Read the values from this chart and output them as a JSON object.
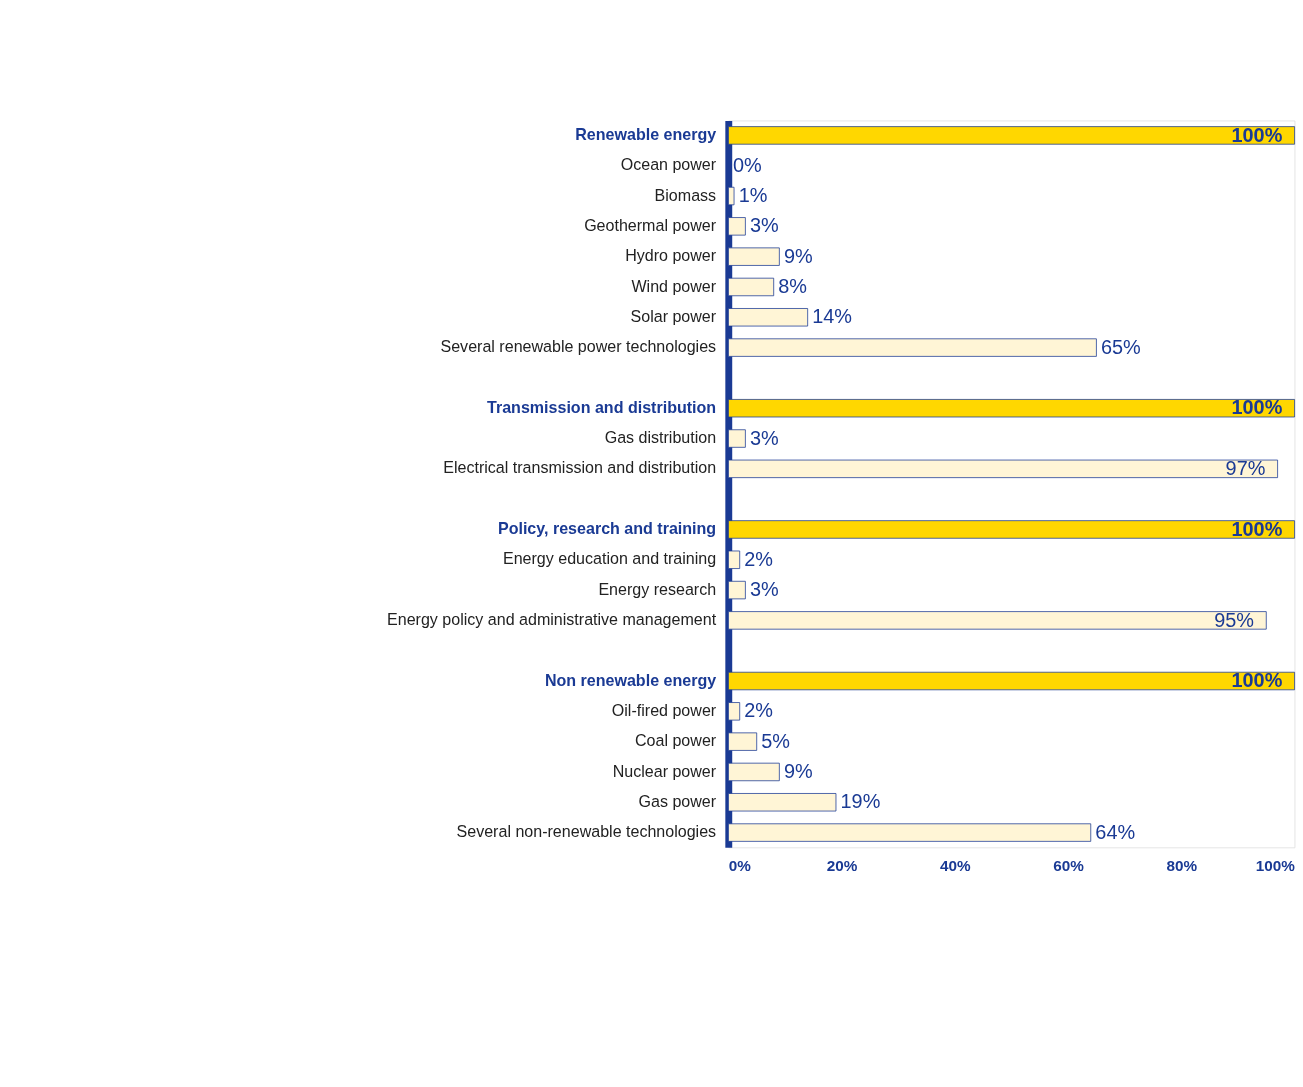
{
  "chart_data": {
    "type": "bar",
    "orientation": "horizontal",
    "categories": [
      "Renewable energy",
      "Ocean power",
      "Biomass",
      "Geothermal power",
      "Hydro power",
      "Wind power",
      "Solar power",
      "Several renewable power technologies",
      null,
      "Transmission and distribution",
      "Gas distribution",
      "Electrical transmission and distribution",
      null,
      "Policy, research and training",
      "Energy education and training",
      "Energy research",
      "Energy policy and administrative management",
      null,
      "Non renewable energy",
      "Oil-fired power",
      "Coal power",
      "Nuclear power",
      "Gas power",
      "Several non-renewable technologies"
    ],
    "values": [
      100,
      0,
      1,
      3,
      9,
      8,
      14,
      65,
      null,
      100,
      3,
      97,
      null,
      100,
      2,
      3,
      95,
      null,
      100,
      2,
      5,
      9,
      19,
      64
    ],
    "value_labels": [
      "100%",
      "0%",
      "1%",
      "3%",
      "9%",
      "8%",
      "14%",
      "65%",
      null,
      "100%",
      "3%",
      "97%",
      null,
      "100%",
      "2%",
      "3%",
      "95%",
      null,
      "100%",
      "2%",
      "5%",
      "9%",
      "19%",
      "64%"
    ],
    "colors": [
      "#ffd700",
      "#fff5d6",
      "#fff5d6",
      "#fff5d6",
      "#fff5d6",
      "#fff5d6",
      "#fff5d6",
      "#fff5d6",
      null,
      "#ffd700",
      "#fff5d6",
      "#fff5d6",
      null,
      "#ffd700",
      "#fff5d6",
      "#fff5d6",
      "#fff5d6",
      null,
      "#ffd700",
      "#fff5d6",
      "#fff5d6",
      "#fff5d6",
      "#fff5d6",
      "#fff5d6"
    ],
    "xlim": [
      0,
      100
    ],
    "xticks": [
      {
        "value": 0,
        "label": "0%"
      },
      {
        "value": 20,
        "label": "20%"
      },
      {
        "value": 40,
        "label": "40%"
      },
      {
        "value": 60,
        "label": "60%"
      },
      {
        "value": 80,
        "label": "80%"
      },
      {
        "value": 100,
        "label": "100%"
      }
    ],
    "grid": false
  }
}
